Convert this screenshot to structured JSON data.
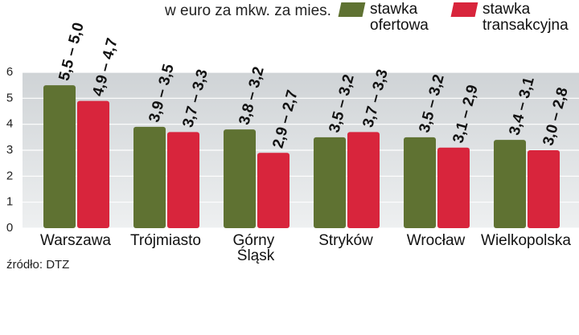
{
  "chart_data": {
    "type": "bar",
    "subtitle": "w euro za mkw. za mies.",
    "source": "źródło: DTZ",
    "categories": [
      "Warszawa",
      "Trójmiasto",
      "Górny Śląsk",
      "Stryków",
      "Wrocław",
      "Wielkopolska"
    ],
    "series": [
      {
        "name": "stawka ofertowa",
        "color": "#5f7232",
        "values": [
          5.5,
          3.9,
          3.8,
          3.5,
          3.5,
          3.4
        ],
        "value_labels": [
          "5,5 – 5,0",
          "3,9 – 3,5",
          "3,8 – 3,2",
          "3,5 – 3,2",
          "3,5 – 3,2",
          "3,4 – 3,1"
        ]
      },
      {
        "name": "stawka transakcyjna",
        "color": "#d8253c",
        "values": [
          4.9,
          3.7,
          2.9,
          3.7,
          3.1,
          3.0
        ],
        "value_labels": [
          "4,9 – 4,7",
          "3,7 – 3,3",
          "2,9 – 2,7",
          "3,7 – 3,3",
          "3,1 – 2,9",
          "3,0 – 2,8"
        ]
      }
    ],
    "ylim": [
      0,
      6
    ],
    "yticks": [
      0,
      1,
      2,
      3,
      4,
      5,
      6
    ],
    "grid": true
  }
}
